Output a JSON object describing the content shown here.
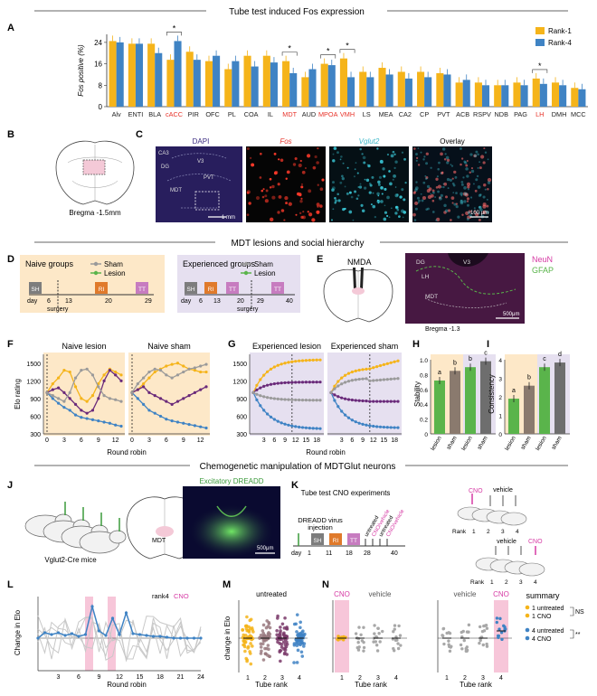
{
  "sections": {
    "s1": "Tube test induced Fos expression",
    "s2": "MDT lesions and social hierarchy",
    "s3": "Chemogenetic manipulation of MDTGlut neurons"
  },
  "panel_letters": [
    "A",
    "B",
    "C",
    "D",
    "E",
    "F",
    "G",
    "H",
    "I",
    "J",
    "K",
    "L",
    "M",
    "N"
  ],
  "colors": {
    "rank1": "#f5b41a",
    "rank4": "#3f83c4",
    "naive_bg": "#fde8c8",
    "exp_bg": "#e6e0f0",
    "red": "#e8332a",
    "cyan": "#3fb9c9",
    "magenta": "#d63aa4",
    "green": "#5ab44b",
    "gray": "#9a9a9a",
    "purple": "#6a2a7a",
    "pink": "#f7c6d9"
  },
  "panelA": {
    "ylabel": "Fos positive (%)",
    "yticks": [
      "0",
      "8",
      "16",
      "24"
    ],
    "legend": [
      "Rank-1",
      "Rank-4"
    ],
    "chart_data": {
      "type": "bar",
      "ylim": [
        0,
        27
      ],
      "categories": [
        "Alv",
        "ENTI",
        "BLA",
        "cACC",
        "PIR",
        "OFC",
        "PL",
        "COA",
        "IL",
        "MDT",
        "AUD",
        "MPOA",
        "VMH",
        "LS",
        "MEA",
        "CA2",
        "CP",
        "PVT",
        "ACB",
        "RSPV",
        "NDB",
        "PAG",
        "LH",
        "DMH",
        "MCC"
      ],
      "red_labels": [
        "cACC",
        "MDT",
        "MPOA",
        "VMH",
        "LH"
      ],
      "series": [
        {
          "name": "Rank-1",
          "values": [
            24.5,
            23.5,
            23.5,
            17.5,
            20.5,
            17,
            14,
            19,
            19,
            17,
            11,
            16,
            18,
            13,
            14.5,
            13,
            13,
            12.5,
            9,
            9,
            8,
            9,
            10.5,
            9,
            7
          ]
        },
        {
          "name": "Rank-4",
          "values": [
            24,
            23.5,
            20,
            24.5,
            17.5,
            19,
            17,
            15,
            16.5,
            12.5,
            14,
            15.5,
            11,
            11,
            12,
            10.5,
            11,
            12,
            10,
            8,
            8,
            8,
            8.5,
            8,
            6.5
          ]
        }
      ],
      "significance": [
        "*",
        "*",
        "*",
        "*",
        "*"
      ]
    }
  },
  "panelB": {
    "caption": "Bregma -1.5mm"
  },
  "panelC": {
    "channels": [
      "DAPI",
      "Fos",
      "Vglut2",
      "Overlay"
    ],
    "regions": [
      "CA3",
      "DG",
      "V3",
      "PVT",
      "MDT"
    ],
    "scale1": "1 mm",
    "scale2": "100 μm"
  },
  "panelD": {
    "naive_title": "Naive groups",
    "exp_title": "Experienced groups",
    "legend": [
      "Sham",
      "Lesion"
    ],
    "naive_boxes": [
      "SH",
      "RI",
      "TT"
    ],
    "exp_boxes": [
      "SH",
      "RI",
      "TT",
      "TT"
    ],
    "naive_days": [
      "day",
      "6",
      "13",
      "20",
      "29"
    ],
    "exp_days": [
      "day",
      "6",
      "13",
      "20",
      "29",
      "40"
    ],
    "surgery": "surgery"
  },
  "panelE": {
    "nmda": "NMDA",
    "stains": [
      "NeuN",
      "GFAP"
    ],
    "regions": [
      "DG",
      "V3",
      "LH",
      "MDT"
    ],
    "bregma": "Bregma -1.3",
    "scale": "500μm"
  },
  "panelF": {
    "titles": [
      "Naive lesion",
      "Naive sham"
    ],
    "ylabel": "Elo rating",
    "xlabel": "Round robin",
    "yticks": [
      "300",
      "600",
      "900",
      "1200",
      "1500"
    ],
    "xticks": [
      "0",
      "3",
      "6",
      "9",
      "12"
    ]
  },
  "panelG": {
    "titles": [
      "Experienced lesion",
      "Experienced sham"
    ],
    "xlabel": "Round robin",
    "yticks": [
      "300",
      "600",
      "900",
      "1200",
      "1500"
    ],
    "xticks": [
      "3",
      "6",
      "9",
      "12",
      "15",
      "18"
    ]
  },
  "panelH": {
    "ylabel": "Stability",
    "yticks": [
      "0",
      "0.2",
      "0.4",
      "0.6",
      "0.8",
      "1.0"
    ],
    "chart_data": {
      "type": "bar",
      "categories": [
        "lesion",
        "sham",
        "lesion",
        "sham"
      ],
      "values": [
        0.72,
        0.85,
        0.9,
        0.98
      ],
      "ylim": [
        0,
        1.0
      ],
      "letters": [
        "a",
        "b",
        "b",
        "c"
      ]
    }
  },
  "panelI": {
    "ylabel": "Consistency",
    "yticks": [
      "0",
      "1",
      "2",
      "3",
      "4"
    ],
    "chart_data": {
      "type": "bar",
      "categories": [
        "lesion",
        "sham",
        "lesion",
        "sham"
      ],
      "values": [
        1.9,
        2.6,
        3.6,
        3.85
      ],
      "ylim": [
        0,
        4
      ],
      "letters": [
        "a",
        "b",
        "c",
        "d"
      ]
    }
  },
  "panelJ": {
    "mice": "Vglut2-Cre mice",
    "region": "MDT",
    "dreadd": "Excitatory DREADD",
    "scale": "500μm"
  },
  "panelK": {
    "title": "Tube test CNO experiments",
    "virus": "DREADD virus",
    "injection": "injection",
    "boxes": [
      "SH",
      "RI",
      "TT"
    ],
    "days": [
      "day",
      "1",
      "11",
      "18",
      "28",
      "40"
    ],
    "slanted": [
      "untreated",
      "CNO/vehicle",
      "untreated",
      "CNO/vehicle"
    ],
    "cno": "CNO",
    "vehicle": "vehicle",
    "rank": "Rank",
    "ranks": [
      "1",
      "2",
      "3",
      "4"
    ]
  },
  "panelL": {
    "ylabel": "Change in Elo",
    "xlabel": "Round robin",
    "legend_a": "rank4",
    "legend_b": "CNO",
    "xticks": [
      "3",
      "6",
      "9",
      "12",
      "15",
      "18",
      "21",
      "24"
    ]
  },
  "panelM": {
    "title": "untreated",
    "ylabel": "change in Elo",
    "xlabel": "Tube rank",
    "xticks": [
      "1",
      "2",
      "3",
      "4"
    ]
  },
  "panelN": {
    "left_tags": [
      "CNO",
      "vehicle"
    ],
    "right_tags": [
      "vehicle",
      "CNO"
    ],
    "xlabel": "Tube rank",
    "xticks": [
      "1",
      "2",
      "3",
      "4"
    ]
  },
  "summary": {
    "title": "summary",
    "rows": [
      "1 untreated",
      "1 CNO",
      "4 untreated",
      "4 CNO"
    ],
    "ns": "NS",
    "sig": "**"
  }
}
